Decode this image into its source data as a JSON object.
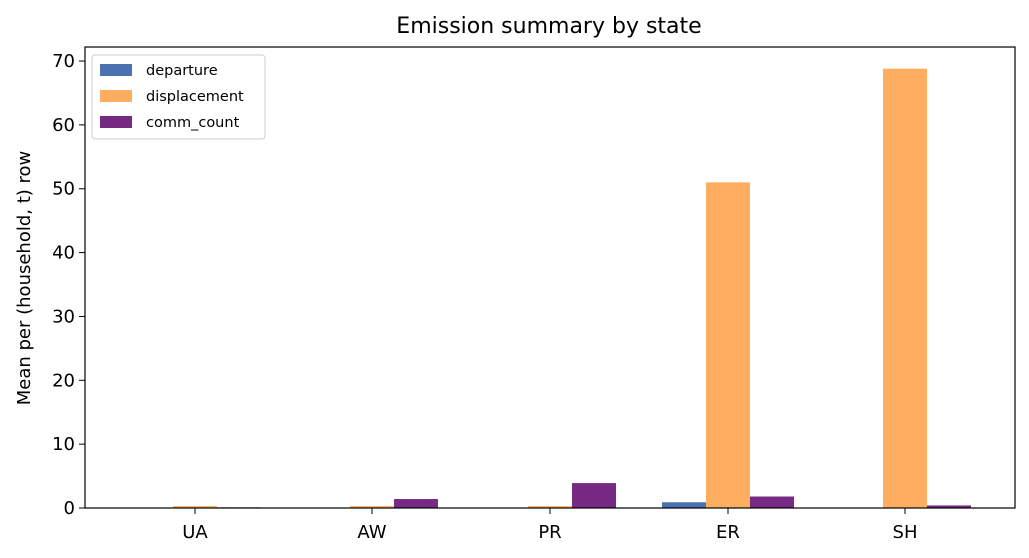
{
  "chart_data": {
    "type": "bar",
    "title": "Emission summary by state",
    "xlabel": "",
    "ylabel": "Mean per (household, t) row",
    "categories": [
      "UA",
      "AW",
      "PR",
      "ER",
      "SH"
    ],
    "series": [
      {
        "name": "departure",
        "color": "#4a72b0",
        "values": [
          0.0,
          0.0,
          0.0,
          0.9,
          0.0
        ]
      },
      {
        "name": "displacement",
        "color": "#fdae61",
        "values": [
          0.3,
          0.3,
          0.3,
          51.0,
          68.8
        ]
      },
      {
        "name": "comm_count",
        "color": "#762a83",
        "values": [
          0.1,
          1.4,
          3.9,
          1.8,
          0.4
        ]
      }
    ],
    "ylim": [
      0,
      72.2
    ],
    "yticks": [
      0,
      10,
      20,
      30,
      40,
      50,
      60,
      70
    ],
    "grid": false,
    "legend_position": "top-left"
  }
}
